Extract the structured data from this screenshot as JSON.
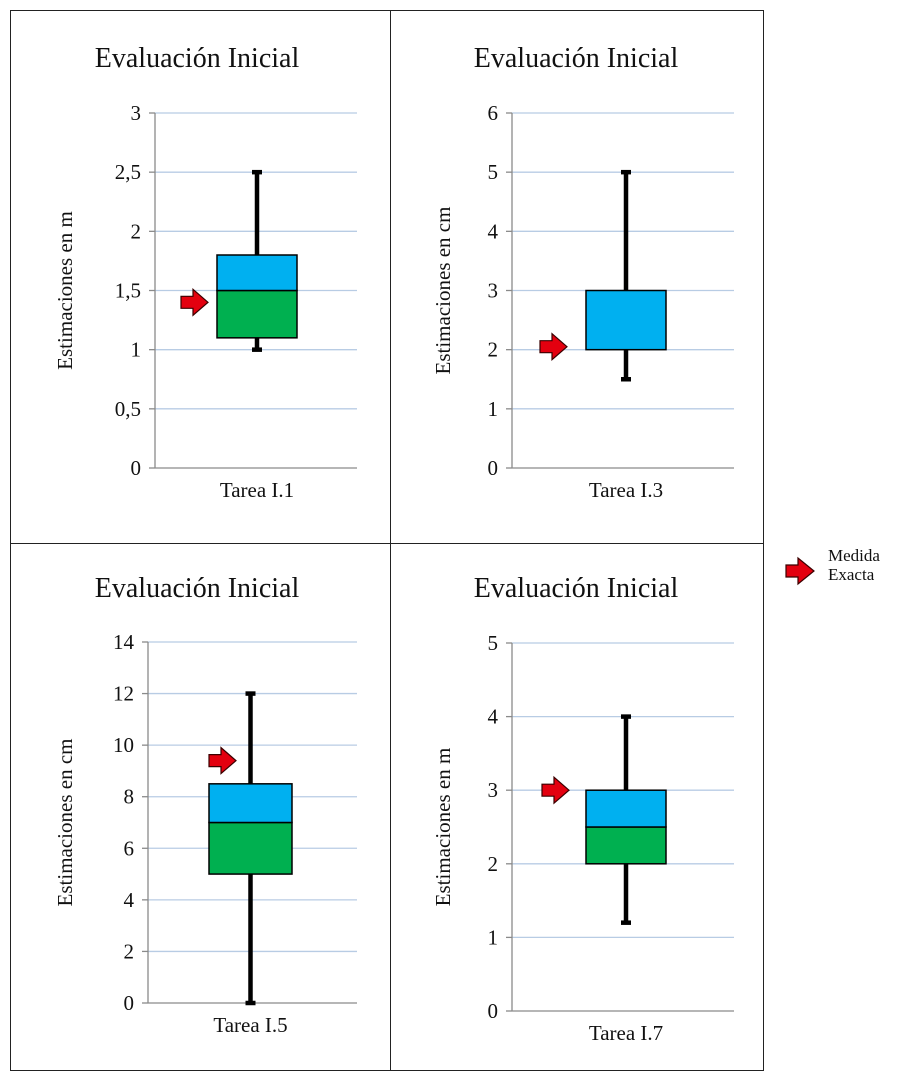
{
  "figure": {
    "legend": {
      "label_line1": "Medida",
      "label_line2": "Exacta"
    },
    "colors": {
      "upper_box": "#00b0f0",
      "lower_box": "#00b050",
      "whisker": "#000000",
      "grid": "#b8cce4",
      "arrow": "#e3000f"
    }
  },
  "chart_data": [
    {
      "type": "box",
      "title": "Evaluación Inicial",
      "ylabel": "Estimaciones en m",
      "xlabel": "Tarea I.1",
      "ylim": [
        0,
        3
      ],
      "ticks": [
        0,
        0.5,
        1,
        1.5,
        2,
        2.5,
        3
      ],
      "tick_labels": [
        "0",
        "0,5",
        "1",
        "1,5",
        "2",
        "2,5",
        "3"
      ],
      "min": 1.0,
      "q1": 1.1,
      "median": 1.5,
      "q3": 1.8,
      "max": 2.5,
      "exact": 1.4
    },
    {
      "type": "box",
      "title": "Evaluación Inicial",
      "ylabel": "Estimaciones en cm",
      "xlabel": "Tarea I.3",
      "ylim": [
        0,
        6
      ],
      "ticks": [
        0,
        1,
        2,
        3,
        4,
        5,
        6
      ],
      "tick_labels": [
        "0",
        "1",
        "2",
        "3",
        "4",
        "5",
        "6"
      ],
      "min": 1.5,
      "q1": 2,
      "median": 2,
      "q3": 3,
      "max": 5,
      "exact": 2.05
    },
    {
      "type": "box",
      "title": "Evaluación Inicial",
      "ylabel": "Estimaciones en cm",
      "xlabel": "Tarea I.5",
      "ylim": [
        0,
        14
      ],
      "ticks": [
        0,
        2,
        4,
        6,
        8,
        10,
        12,
        14
      ],
      "tick_labels": [
        "0",
        "2",
        "4",
        "6",
        "8",
        "10",
        "12",
        "14"
      ],
      "min": 0,
      "q1": 5,
      "median": 7,
      "q3": 8.5,
      "max": 12,
      "exact": 9.4
    },
    {
      "type": "box",
      "title": "Evaluación Inicial",
      "ylabel": "Estimaciones en m",
      "xlabel": "Tarea I.7",
      "ylim": [
        0,
        5
      ],
      "ticks": [
        0,
        1,
        2,
        3,
        4,
        5
      ],
      "tick_labels": [
        "0",
        "1",
        "2",
        "3",
        "4",
        "5"
      ],
      "min": 1.2,
      "q1": 2,
      "median": 2.5,
      "q3": 3,
      "max": 4,
      "exact": 3.0
    }
  ]
}
